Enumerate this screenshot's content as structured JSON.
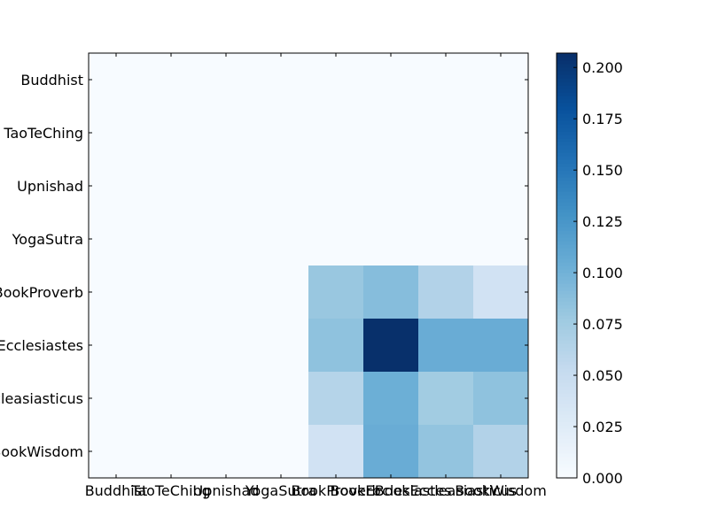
{
  "chart_data": {
    "type": "heatmap",
    "rows": [
      "Buddhist",
      "TaoTeChing",
      "Upnishad",
      "YogaSutra",
      "BookProverb",
      "BookEcclesiastes",
      "BookEccleasiasticus",
      "BookWisdom"
    ],
    "columns": [
      "Buddhist",
      "TaoTeChing",
      "Upnishad",
      "YogaSutra",
      "BookProverb",
      "BookEcclesiastes",
      "BookEccleasiasticus",
      "BookWisdom"
    ],
    "values": [
      [
        0,
        0,
        0,
        0,
        0,
        0,
        0,
        0
      ],
      [
        0,
        0,
        0,
        0,
        0,
        0,
        0,
        0
      ],
      [
        0,
        0,
        0,
        0,
        0,
        0,
        0,
        0
      ],
      [
        0,
        0,
        0,
        0,
        0,
        0,
        0,
        0
      ],
      [
        0,
        0,
        0,
        0,
        0.08,
        0.09,
        0.065,
        0.04
      ],
      [
        0,
        0,
        0,
        0,
        0.085,
        0.207,
        0.105,
        0.105
      ],
      [
        0,
        0,
        0,
        0,
        0.063,
        0.103,
        0.075,
        0.085
      ],
      [
        0,
        0,
        0,
        0,
        0.04,
        0.105,
        0.083,
        0.065
      ]
    ],
    "colormap": "Blues",
    "vmin": 0,
    "vmax": 0.207,
    "colorbar_ticks": [
      "0.000",
      "0.025",
      "0.050",
      "0.075",
      "0.100",
      "0.125",
      "0.150",
      "0.175",
      "0.200"
    ],
    "colorbar_tick_values": [
      0,
      0.025,
      0.05,
      0.075,
      0.1,
      0.125,
      0.15,
      0.175,
      0.2
    ],
    "title": "",
    "xlabel": "",
    "ylabel": ""
  }
}
